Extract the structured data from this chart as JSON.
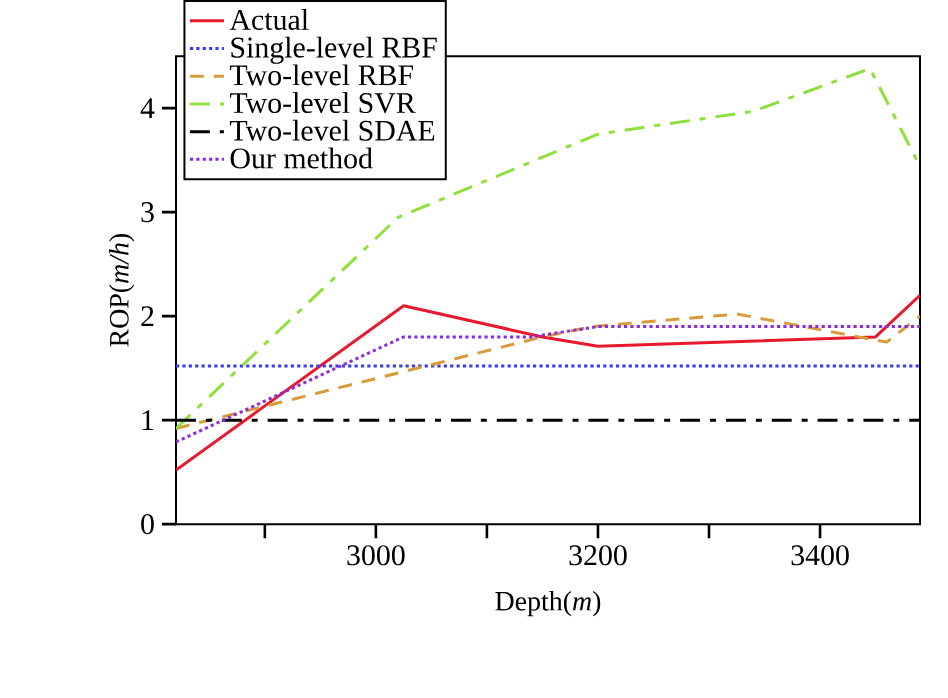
{
  "chart_data": {
    "type": "line",
    "xlabel": "Depth(*m*)",
    "ylabel": "ROP(*m/h*)",
    "xlim": [
      2820,
      3490
    ],
    "ylim": [
      0,
      4.5
    ],
    "xticks": [
      {
        "value": 2900,
        "label": null
      },
      3000,
      {
        "value": 3100,
        "label": null
      },
      3200,
      {
        "value": 3300,
        "label": null
      },
      3400
    ],
    "yticks": [
      0,
      1,
      2,
      3,
      4
    ],
    "legend": "top left",
    "grid": false,
    "marker": "none",
    "series": [
      {
        "name": "Actual",
        "color": "#e8192c",
        "line_style": "solid",
        "x": [
          2820,
          3025,
          3150,
          3200,
          3450,
          3490
        ],
        "values": [
          0.52,
          2.1,
          1.8,
          1.71,
          1.8,
          2.2
        ]
      },
      {
        "name": "Single-level RBF",
        "color": "#3a3af0",
        "line_style": "dotted",
        "x": [
          2820,
          3490
        ],
        "values": [
          1.52,
          1.52
        ]
      },
      {
        "name": "Two-level RBF",
        "color": "#d99a3a",
        "line_style": "dashed",
        "x": [
          2820,
          3150,
          3195,
          3325,
          3460,
          3490
        ],
        "values": [
          0.92,
          1.8,
          1.9,
          2.02,
          1.75,
          2.0
        ]
      },
      {
        "name": "Two-level SVR",
        "color": "#8ee03a",
        "line_style": "dashdot",
        "x": [
          2820,
          3020,
          3200,
          3340,
          3445,
          3490
        ],
        "values": [
          0.92,
          2.95,
          3.75,
          3.97,
          4.38,
          3.44
        ]
      },
      {
        "name": "Two-level SDAE",
        "color": "#000000",
        "line_style": "dashdot",
        "x": [
          2820,
          3490
        ],
        "values": [
          1.0,
          1.0
        ]
      },
      {
        "name": "Our method",
        "color": "#8a2be2",
        "line_style": "dotted",
        "x": [
          2820,
          3025,
          3140,
          3200,
          3490
        ],
        "values": [
          0.79,
          1.8,
          1.8,
          1.9,
          1.9
        ]
      }
    ]
  }
}
